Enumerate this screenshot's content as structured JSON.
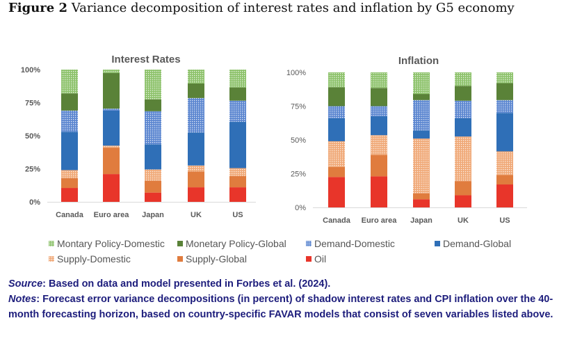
{
  "figure": {
    "label": "Figure 2",
    "title": "Variance decomposition of interest rates and inflation by G5 economy"
  },
  "series_meta": [
    {
      "name": "Oil",
      "color": "#e8352a",
      "dotted": false
    },
    {
      "name": "Supply-Global",
      "color": "#e07c3e",
      "dotted": false
    },
    {
      "name": "Supply-Domestic",
      "color": "#f0a978",
      "dotted": true
    },
    {
      "name": "Demand-Global",
      "color": "#2f6fb7",
      "dotted": false
    },
    {
      "name": "Demand-Domestic",
      "color": "#5b86d0",
      "dotted": true
    },
    {
      "name": "Monetary Policy-Global",
      "color": "#5a8238",
      "dotted": false
    },
    {
      "name": "Montary Policy-Domestic",
      "color": "#8dc26b",
      "dotted": true
    }
  ],
  "chart_data": [
    {
      "type": "bar",
      "stacked": true,
      "title": "Interest Rates",
      "categories": [
        "Canada",
        "Euro area",
        "Japan",
        "UK",
        "US"
      ],
      "yticks": [
        "0%",
        "25%",
        "50%",
        "75%",
        "100%"
      ],
      "ylim": [
        0,
        100
      ],
      "series": [
        {
          "name": "Oil",
          "values": [
            10.5,
            21,
            7,
            11,
            11
          ]
        },
        {
          "name": "Supply-Global",
          "values": [
            7.5,
            20,
            9,
            12,
            8.5
          ]
        },
        {
          "name": "Supply-Domestic",
          "values": [
            6,
            1.5,
            8.5,
            4.5,
            6
          ]
        },
        {
          "name": "Demand-Global",
          "values": [
            29,
            26.5,
            19,
            25,
            35
          ]
        },
        {
          "name": "Demand-Domestic",
          "values": [
            16,
            1.5,
            25,
            26,
            16
          ]
        },
        {
          "name": "Monetary Policy-Global",
          "values": [
            13,
            27,
            9,
            11,
            10
          ]
        },
        {
          "name": "Montary Policy-Domestic",
          "values": [
            18,
            2.5,
            22.5,
            10.5,
            13.5
          ]
        }
      ]
    },
    {
      "type": "bar",
      "stacked": true,
      "title": "Inflation",
      "categories": [
        "Canada",
        "Euro area",
        "Japan",
        "UK",
        "US"
      ],
      "yticks": [
        "0%",
        "25%",
        "50%",
        "75%",
        "100%"
      ],
      "ylim": [
        0,
        100
      ],
      "series": [
        {
          "name": "Oil",
          "values": [
            22.5,
            23,
            6,
            9,
            17
          ]
        },
        {
          "name": "Supply-Global",
          "values": [
            7.5,
            16,
            4.5,
            10.5,
            7
          ]
        },
        {
          "name": "Supply-Domestic",
          "values": [
            19,
            14.5,
            40.5,
            33,
            17.5
          ]
        },
        {
          "name": "Demand-Global",
          "values": [
            17,
            14,
            6,
            13.5,
            28.5
          ]
        },
        {
          "name": "Demand-Domestic",
          "values": [
            9,
            7.5,
            22.5,
            13,
            9.5
          ]
        },
        {
          "name": "Monetary Policy-Global",
          "values": [
            14,
            13.5,
            4.5,
            11,
            12.5
          ]
        },
        {
          "name": "Montary Policy-Domestic",
          "values": [
            11,
            11.5,
            16,
            10,
            8
          ]
        }
      ]
    }
  ],
  "legend": [
    "Montary Policy-Domestic",
    "Monetary Policy-Global",
    "Demand-Domestic",
    "Demand-Global",
    "Supply-Domestic",
    "Supply-Global",
    "Oil"
  ],
  "notes": {
    "source_label": "Source",
    "source_text": ": Based on data and model presented in Forbes et al. (2024).",
    "notes_label": "Notes",
    "notes_text": ": Forecast error variance decompositions (in percent) of shadow interest rates and CPI inflation over the 40-month forecasting horizon, based on country-specific FAVAR models that consist of seven variables listed above."
  }
}
